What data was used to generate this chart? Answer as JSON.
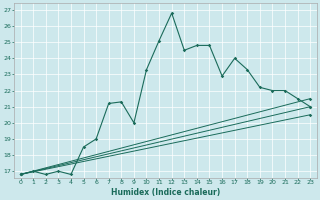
{
  "xlabel": "Humidex (Indice chaleur)",
  "background_color": "#cde8ec",
  "line_color": "#1a6b5a",
  "grid_color": "#ffffff",
  "xlim": [
    -0.5,
    23.5
  ],
  "ylim": [
    16.6,
    27.4
  ],
  "yticks": [
    17,
    18,
    19,
    20,
    21,
    22,
    23,
    24,
    25,
    26,
    27
  ],
  "xticks": [
    0,
    1,
    2,
    3,
    4,
    5,
    6,
    7,
    8,
    9,
    10,
    11,
    12,
    13,
    14,
    15,
    16,
    17,
    18,
    19,
    20,
    21,
    22,
    23
  ],
  "main_line": {
    "x": [
      0,
      1,
      2,
      3,
      4,
      5,
      6,
      7,
      8,
      9,
      10,
      11,
      12,
      13,
      14,
      15,
      16,
      17,
      18,
      19,
      20,
      21,
      22,
      23
    ],
    "y": [
      16.8,
      17.0,
      16.8,
      17.0,
      16.8,
      18.5,
      19.0,
      21.2,
      21.3,
      20.0,
      23.3,
      25.1,
      26.8,
      24.5,
      24.8,
      24.8,
      22.9,
      24.0,
      23.3,
      22.2,
      22.0,
      22.0,
      21.5,
      21.0
    ]
  },
  "fan_lines": [
    {
      "x": [
        0,
        23
      ],
      "y": [
        16.8,
        21.5
      ]
    },
    {
      "x": [
        0,
        23
      ],
      "y": [
        16.8,
        21.0
      ]
    },
    {
      "x": [
        0,
        23
      ],
      "y": [
        16.8,
        20.5
      ]
    }
  ]
}
